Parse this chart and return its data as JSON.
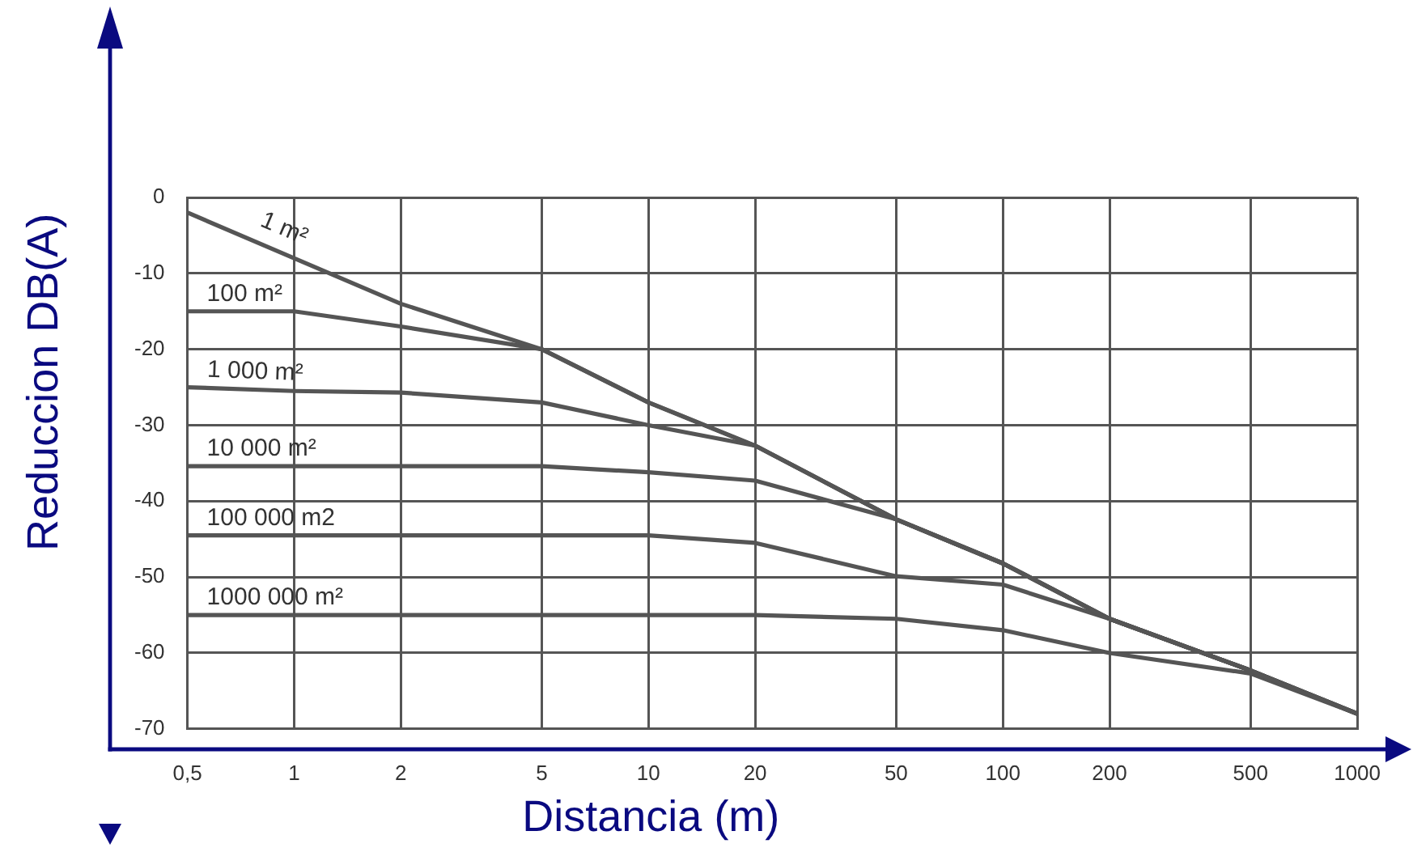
{
  "chart_data": {
    "type": "line",
    "xlabel": "Distancia (m)",
    "ylabel": "Reduccion DB(A)",
    "log": "x",
    "xlim": [
      0.5,
      1000
    ],
    "xticks": [
      {
        "value": 0.5,
        "label": "0,5"
      },
      1,
      2,
      5,
      10,
      20,
      50,
      100,
      200,
      500,
      1000
    ],
    "ylim": [
      -70,
      0
    ],
    "yticks": [
      0,
      -10,
      -20,
      -30,
      -40,
      -50,
      -60,
      -70
    ],
    "grid": true,
    "legend": false,
    "x": [
      0.5,
      1,
      2,
      5,
      10,
      20,
      50,
      100,
      200,
      500,
      1000
    ],
    "series": [
      {
        "name": "1 m²",
        "color": "#555555",
        "values": [
          -2,
          -8,
          -14,
          -20,
          -27,
          -32.7,
          -42.4,
          -48.2,
          -55.5,
          -62.3,
          -68
        ]
      },
      {
        "name": "100 m²",
        "color": "#555555",
        "values": [
          -15,
          -15,
          -17,
          -20,
          -27,
          -32.7,
          -42.4,
          -48.2,
          -55.5,
          -62.3,
          -68
        ]
      },
      {
        "name": "1 000 m²",
        "color": "#555555",
        "values": [
          -25,
          -25.5,
          -25.7,
          -27,
          -30,
          -32.7,
          -42.4,
          -48.2,
          -55.5,
          -62.3,
          -68
        ]
      },
      {
        "name": "10 000 m²",
        "color": "#555555",
        "values": [
          -35.4,
          -35.4,
          -35.4,
          -35.4,
          -36.2,
          -37.3,
          -42.4,
          -48.2,
          -55.5,
          -62.3,
          -68
        ]
      },
      {
        "name": "100 000 m2",
        "color": "#555555",
        "values": [
          -44.5,
          -44.5,
          -44.5,
          -44.5,
          -44.5,
          -45.5,
          -49.9,
          -51,
          -55.5,
          -62.3,
          -68
        ]
      },
      {
        "name": "1000 000 m²",
        "color": "#555555",
        "values": [
          -55,
          -55,
          -55,
          -55,
          -55,
          -55,
          -55.5,
          -57,
          -60,
          -62.7,
          -68
        ]
      }
    ]
  }
}
